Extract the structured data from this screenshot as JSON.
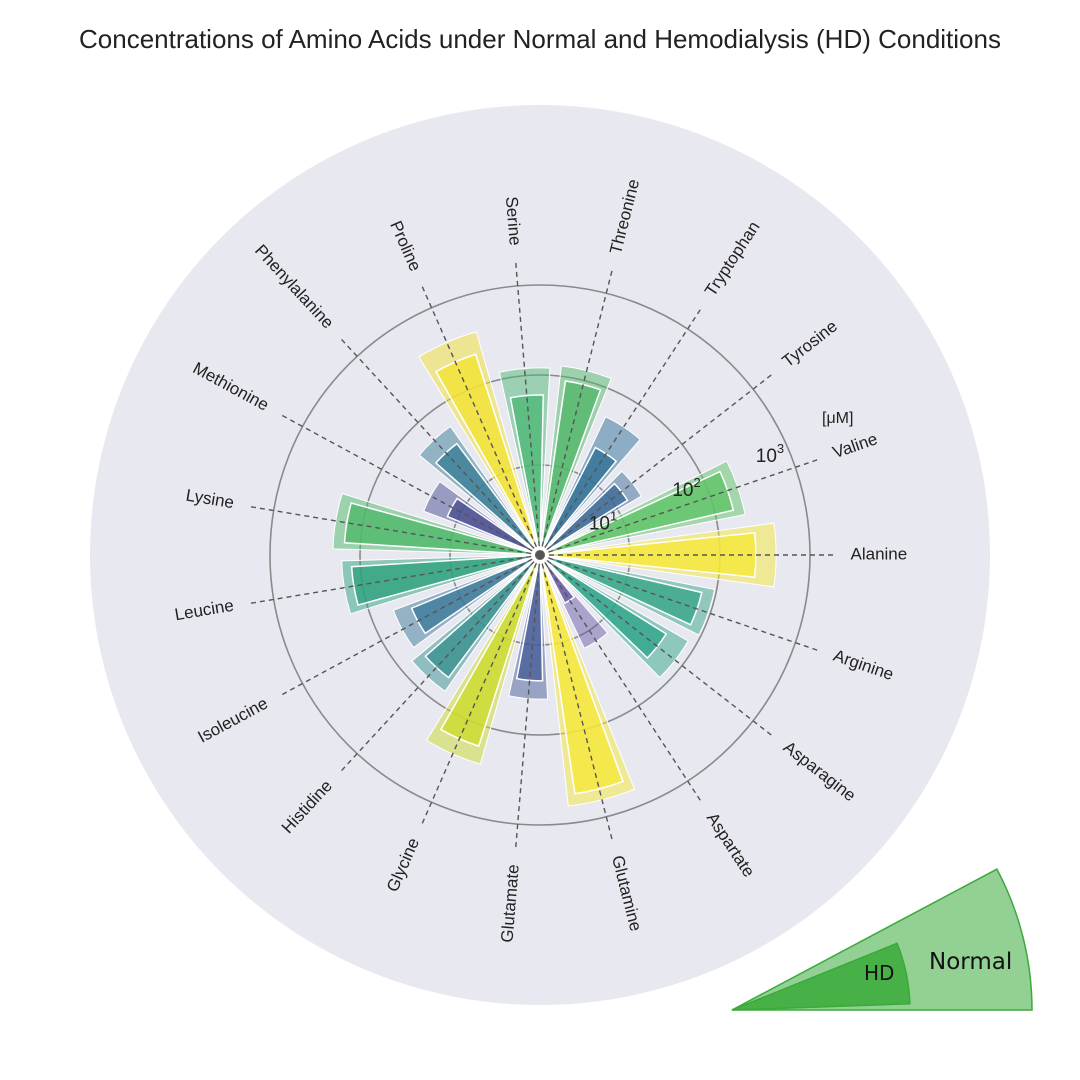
{
  "chart_data": {
    "type": "bar",
    "subtype": "polar-bar",
    "title": "Concentrations of Amino Acids under Normal and Hemodialysis (HD) Conditions",
    "categories": [
      "Alanine",
      "Arginine",
      "Asparagine",
      "Aspartate",
      "Glutamine",
      "Glutamate",
      "Glycine",
      "Histidine",
      "Isoleucine",
      "Leucine",
      "Lysine",
      "Methionine",
      "Phenylalanine",
      "Proline",
      "Serine",
      "Threonine",
      "Tryptophan",
      "Tyrosine",
      "Valine"
    ],
    "series": [
      {
        "name": "Normal",
        "values": [
          420,
          95,
          80,
          14,
          640,
          40,
          260,
          70,
          55,
          160,
          200,
          24,
          55,
          380,
          120,
          130,
          50,
          20,
          210
        ]
      },
      {
        "name": "HD",
        "values": [
          250,
          70,
          45,
          4,
          480,
          25,
          170,
          50,
          35,
          125,
          150,
          13,
          35,
          220,
          60,
          90,
          22,
          14,
          160
        ]
      }
    ],
    "colors": [
      "#f6e73a",
      "#39a88a",
      "#31a589",
      "#6b5ea8",
      "#f6e73a",
      "#4a5f9a",
      "#cddc2d",
      "#38918f",
      "#3d7b9a",
      "#2fa380",
      "#4fb96a",
      "#4a4f93",
      "#3a7e97",
      "#f3e234",
      "#4eb875",
      "#52b76a",
      "#2f7197",
      "#3e6b98",
      "#5ec466"
    ],
    "rscale": "log",
    "rlim": [
      1,
      1000
    ],
    "rticks": [
      {
        "value": 10,
        "base": "10",
        "exp": "1"
      },
      {
        "value": 100,
        "base": "10",
        "exp": "2"
      },
      {
        "value": 1000,
        "base": "10",
        "exp": "3"
      }
    ],
    "unit": "[μM]",
    "grid": true,
    "legend": {
      "position": "bottom-right",
      "entries": [
        "HD",
        "Normal"
      ],
      "color": "#3aaa3a"
    }
  }
}
